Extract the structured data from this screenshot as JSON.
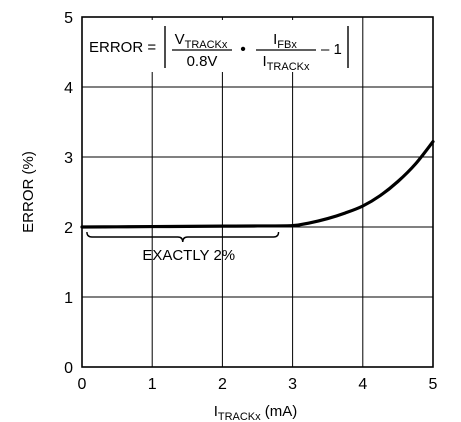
{
  "chart_data": {
    "type": "line",
    "title": "",
    "ylabel": "ERROR (%)",
    "xlabel": {
      "main": "I",
      "subscript": "TRACKx",
      "unit": " (mA)"
    },
    "xlim": [
      0,
      5
    ],
    "ylim": [
      0,
      5
    ],
    "x_ticks": [
      "0",
      "1",
      "2",
      "3",
      "4",
      "5"
    ],
    "y_ticks": [
      "0",
      "1",
      "2",
      "3",
      "4",
      "5"
    ],
    "grid": true,
    "series": [
      {
        "name": "",
        "color": "#000000",
        "x": [
          0,
          0.5,
          1,
          1.5,
          2,
          2.5,
          3,
          3.25,
          3.5,
          3.75,
          4,
          4.25,
          4.5,
          4.75,
          5
        ],
        "y": [
          2.0,
          2.003,
          2.006,
          2.009,
          2.012,
          2.015,
          2.02,
          2.06,
          2.12,
          2.2,
          2.3,
          2.45,
          2.65,
          2.9,
          3.22
        ]
      }
    ],
    "annotations": {
      "brace_label": "EXACTLY 2%",
      "brace_range": [
        0.07,
        2.8
      ],
      "formula": {
        "lhs": "ERROR =",
        "frac1_num_main": "V",
        "frac1_num_sub": "TRACKx",
        "frac1_den": "0.8V",
        "dot": "•",
        "frac2_num_main": "I",
        "frac2_num_sub": "FBx",
        "frac2_den_main": "I",
        "frac2_den_sub": "TRACKx",
        "tail": "– 1"
      }
    }
  }
}
